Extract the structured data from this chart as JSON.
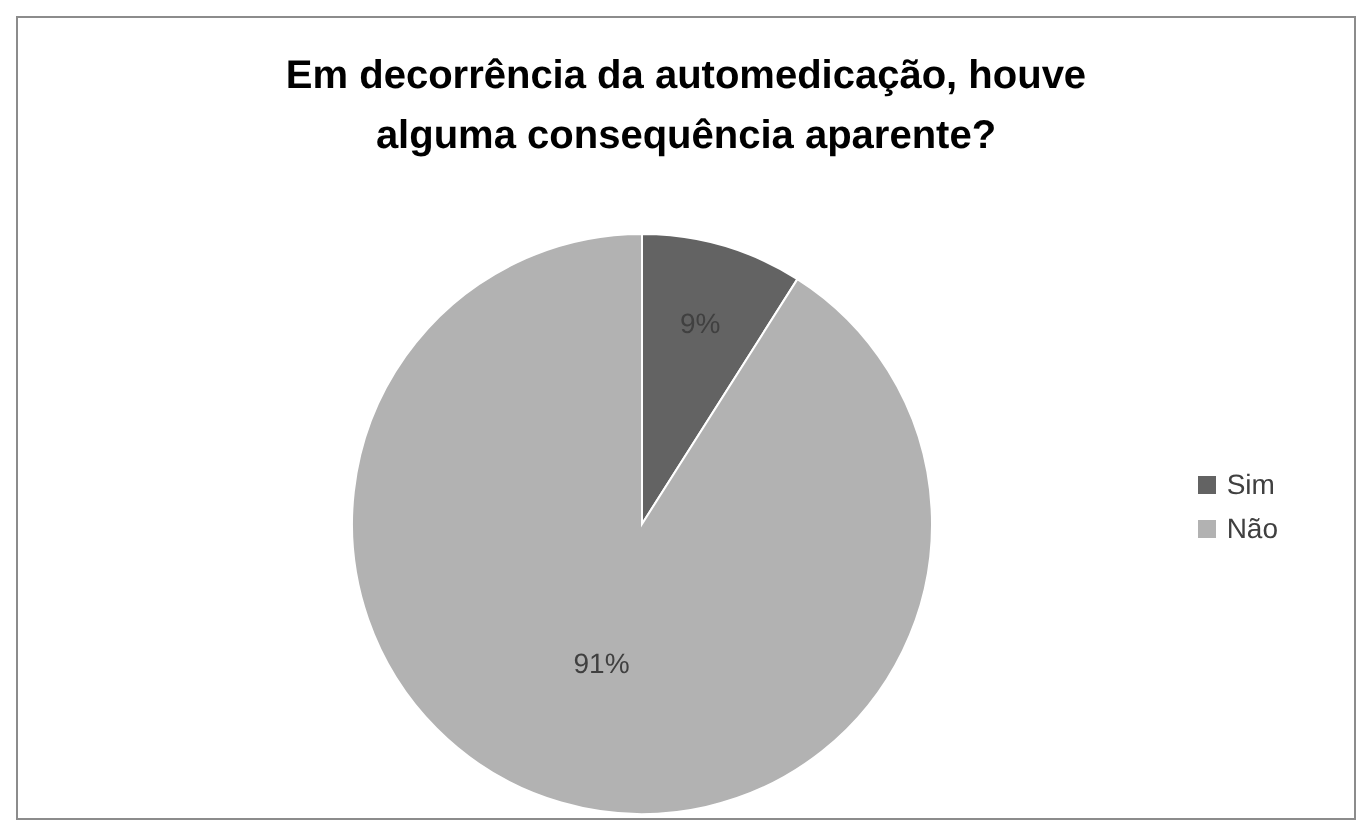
{
  "chart_data": {
    "type": "pie",
    "title": "Em decorrência da automedicação, houve alguma consequência aparente?",
    "categories": [
      "Sim",
      "Não"
    ],
    "values": [
      9,
      91
    ],
    "colors": [
      "#636363",
      "#b2b2b2"
    ],
    "value_labels": [
      "9%",
      "91%"
    ],
    "legend": "right"
  }
}
